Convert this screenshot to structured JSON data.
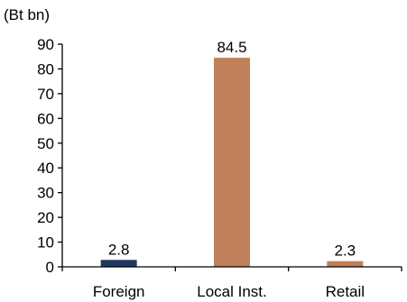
{
  "chart_data": {
    "type": "bar",
    "unit_label": "(Bt bn)",
    "categories": [
      "Foreign",
      "Local Inst.",
      "Retail"
    ],
    "values": [
      2.8,
      84.5,
      2.3
    ],
    "data_labels": [
      "2.8",
      "84.5",
      "2.3"
    ],
    "bar_colors": [
      "#1f3864",
      "#c0805a",
      "#c0805a"
    ],
    "ylim": [
      0,
      90
    ],
    "yticks": [
      0,
      10,
      20,
      30,
      40,
      50,
      60,
      70,
      80,
      90
    ],
    "grid": false,
    "legend": "none"
  }
}
